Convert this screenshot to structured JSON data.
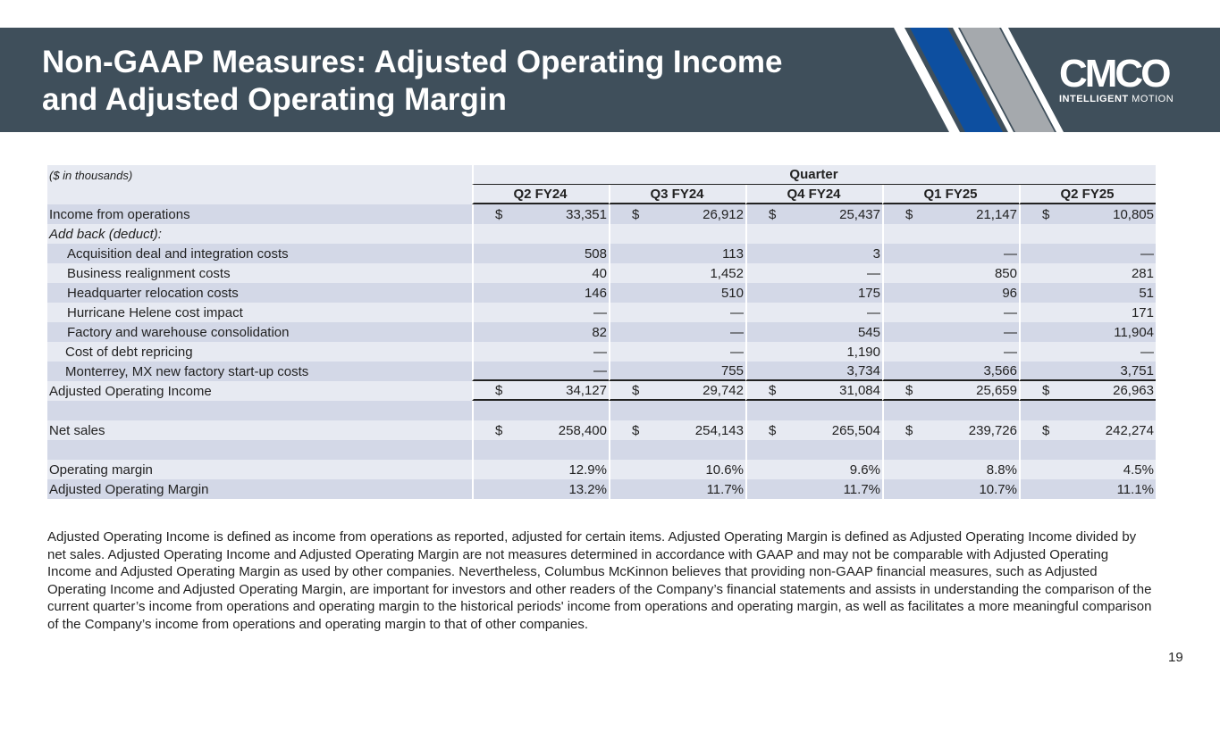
{
  "header": {
    "title_line1": "Non-GAAP Measures: Adjusted Operating Income",
    "title_line2": "and Adjusted Operating Margin",
    "logo_text": "CMCO",
    "logo_tagline_bold": "INTELLIGENT",
    "logo_tagline_light": "MOTION",
    "colors": {
      "banner": "#3f4f5b",
      "stripe_blue": "#0d4fa0",
      "stripe_gray": "#a5a9ad"
    }
  },
  "table": {
    "units_note": "($ in thousands)",
    "group_header": "Quarter",
    "columns": [
      "Q2 FY24",
      "Q3 FY24",
      "Q4 FY24",
      "Q1 FY25",
      "Q2 FY25"
    ],
    "rows": [
      {
        "label": "Income from operations",
        "values": [
          "33,351",
          "26,912",
          "25,437",
          "21,147",
          "10,805"
        ],
        "dollar": "$"
      },
      {
        "label": "Add back (deduct):",
        "values": [
          "",
          "",
          "",
          "",
          ""
        ]
      },
      {
        "label": "Acquisition deal and integration costs",
        "values": [
          "508",
          "113",
          "3",
          "—",
          "—"
        ]
      },
      {
        "label": "Business realignment costs",
        "values": [
          "40",
          "1,452",
          "—",
          "850",
          "281"
        ]
      },
      {
        "label": "Headquarter relocation costs",
        "values": [
          "146",
          "510",
          "175",
          "96",
          "51"
        ]
      },
      {
        "label": "Hurricane Helene cost impact",
        "values": [
          "—",
          "—",
          "—",
          "—",
          "171"
        ]
      },
      {
        "label": "Factory and warehouse consolidation",
        "values": [
          "82",
          "—",
          "545",
          "—",
          "11,904"
        ]
      },
      {
        "label": "Cost of debt repricing",
        "values": [
          "—",
          "—",
          "1,190",
          "—",
          "—"
        ]
      },
      {
        "label": "Monterrey, MX new factory start-up costs",
        "values": [
          "—",
          "755",
          "3,734",
          "3,566",
          "3,751"
        ]
      },
      {
        "label": "Adjusted Operating Income",
        "values": [
          "34,127",
          "29,742",
          "31,084",
          "25,659",
          "26,963"
        ],
        "dollar": "$"
      },
      {
        "label": "",
        "values": [
          "",
          "",
          "",
          "",
          ""
        ]
      },
      {
        "label": "Net sales",
        "values": [
          "258,400",
          "254,143",
          "265,504",
          "239,726",
          "242,274"
        ],
        "dollar": "$"
      },
      {
        "label": "",
        "values": [
          "",
          "",
          "",
          "",
          ""
        ]
      },
      {
        "label": "Operating margin",
        "values": [
          "12.9%",
          "10.6%",
          "9.6%",
          "8.8%",
          "4.5%"
        ]
      },
      {
        "label": "Adjusted Operating Margin",
        "values": [
          "13.2%",
          "11.7%",
          "11.7%",
          "10.7%",
          "11.1%"
        ]
      }
    ]
  },
  "footnote": "Adjusted Operating Income is defined as income from operations as reported, adjusted for certain items.  Adjusted Operating Margin is defined as Adjusted Operating Income divided by net sales.  Adjusted Operating Income and Adjusted Operating Margin are not measures determined in accordance with GAAP and may not be comparable with Adjusted Operating Income and Adjusted Operating Margin as used by other companies.  Nevertheless, Columbus McKinnon believes that providing non-GAAP financial measures, such as Adjusted Operating Income and Adjusted Operating Margin, are important for investors and other readers of the Company’s financial statements and assists in understanding the comparison of the current quarter’s income from operations and operating margin to the historical periods' income from operations and operating margin, as well as facilitates a more meaningful comparison of the Company’s income from operations and operating margin to that of other companies.",
  "page_number": "19"
}
